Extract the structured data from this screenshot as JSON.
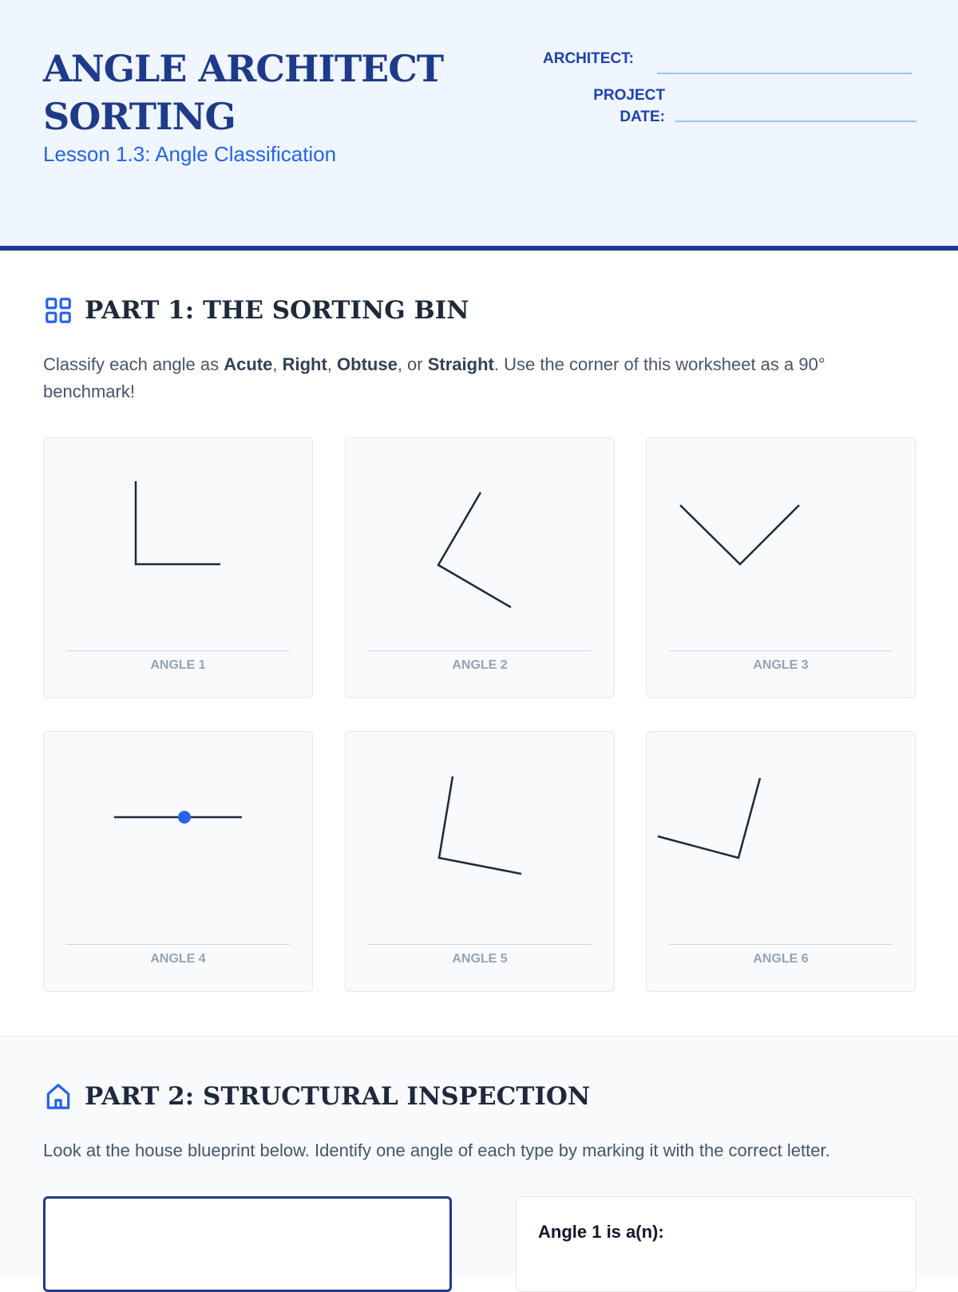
{
  "header": {
    "title": "ANGLE ARCHITECT SORTING",
    "subtitle": "Lesson 1.3: Angle Classification",
    "architect_label": "ARCHITECT:",
    "date_label_1": "PROJECT",
    "date_label_2": "DATE:"
  },
  "part1": {
    "heading": "PART 1: THE SORTING BIN",
    "icon": "grid-icon",
    "desc_pre": "Classify each angle as ",
    "acute": "Acute",
    "sep1": ", ",
    "right": "Right",
    "sep2": ", ",
    "obtuse": "Obtuse",
    "sep3": ", or ",
    "straight": "Straight",
    "desc_post": ". Use the corner of this worksheet as a 90° benchmark!",
    "cards": [
      {
        "label": "ANGLE 1"
      },
      {
        "label": "ANGLE 2"
      },
      {
        "label": "ANGLE 3"
      },
      {
        "label": "ANGLE 4"
      },
      {
        "label": "ANGLE 5"
      },
      {
        "label": "ANGLE 6"
      }
    ]
  },
  "part2": {
    "heading": "PART 2: STRUCTURAL INSPECTION",
    "icon": "house-icon",
    "desc": "Look at the house blueprint below. Identify one angle of each type by marking it with the correct letter.",
    "question": "Angle 1 is a(n):"
  },
  "colors": {
    "primary": "#1e3a8a",
    "accent": "#2563eb",
    "line": "#1e293b"
  }
}
